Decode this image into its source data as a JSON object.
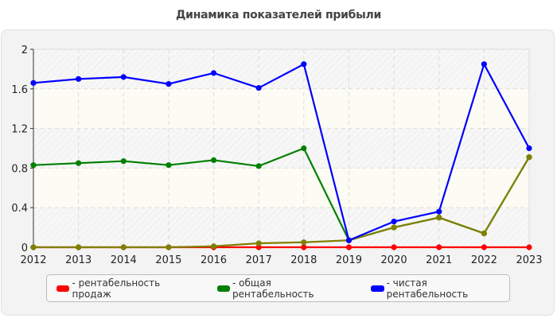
{
  "header": {
    "title": "Динамика показателей прибыли"
  },
  "legend": {
    "items": [
      {
        "label": "- рентабельность продаж",
        "color": "#ff0000"
      },
      {
        "label": "- общая рентабельность",
        "color": "#008000"
      },
      {
        "label": "- чистая рентабельность",
        "color": "#0000ff"
      }
    ]
  },
  "chart_data": {
    "type": "line",
    "title": "Динамика показателей прибыли",
    "xlabel": "",
    "ylabel": "",
    "x": [
      "2012",
      "2013",
      "2014",
      "2015",
      "2016",
      "2017",
      "2018",
      "2019",
      "2020",
      "2021",
      "2022",
      "2023"
    ],
    "ylim": [
      0,
      2
    ],
    "yticks": [
      "0",
      "0.4",
      "0.8",
      "1.2",
      "1.6",
      "2"
    ],
    "grid": true,
    "legend_position": "bottom",
    "series": [
      {
        "name": "рентабельность продаж",
        "color": "#ff0000",
        "values": [
          0,
          0,
          0,
          0,
          0,
          0,
          0,
          0,
          0,
          0,
          0,
          0
        ]
      },
      {
        "name": "общая рентабельность",
        "color": "#008000",
        "values": [
          0.83,
          0.85,
          0.87,
          0.83,
          0.88,
          0.82,
          1.0,
          0.07,
          0.2,
          0.3,
          0.14,
          0.91
        ]
      },
      {
        "name": "чистая рентабельность",
        "color": "#0000ff",
        "values": [
          1.66,
          1.7,
          1.72,
          1.65,
          1.76,
          1.61,
          1.85,
          0.07,
          0.26,
          0.36,
          1.85,
          1.0
        ]
      },
      {
        "name": "",
        "color": "#808000",
        "values": [
          0,
          0,
          0,
          0,
          0.01,
          0.04,
          0.05,
          0.07,
          0.2,
          0.3,
          0.14,
          0.91
        ]
      }
    ]
  }
}
